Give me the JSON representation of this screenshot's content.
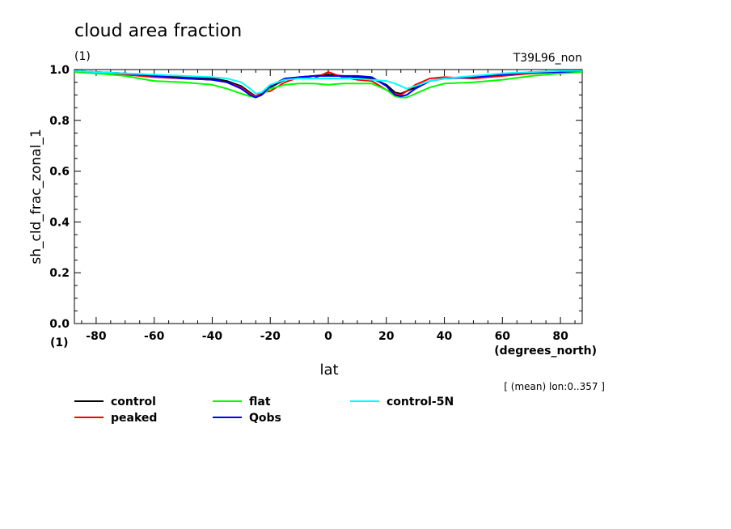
{
  "chart_data": {
    "type": "line",
    "title": "cloud area fraction",
    "units_label": "(1)",
    "experiment": "T39L96_non",
    "xlabel": "lat",
    "xunits": "(degrees_north)",
    "ylabel": "sh_cld_frac_zonal_1",
    "yunits": "(1)",
    "note": "[ (mean) lon:0..357 ]",
    "xlim": [
      -87.5,
      87.5
    ],
    "ylim": [
      0.0,
      1.0
    ],
    "xticks": [
      -80,
      -60,
      -40,
      -20,
      0,
      20,
      40,
      60,
      80
    ],
    "xtick_labels": [
      "-80",
      "-60",
      "-40",
      "-20",
      "0",
      "20",
      "40",
      "60",
      "80"
    ],
    "yticks": [
      0.0,
      0.2,
      0.4,
      0.6,
      0.8,
      1.0
    ],
    "ytick_labels": [
      "0.0",
      "0.2",
      "0.4",
      "0.6",
      "0.8",
      "1.0"
    ],
    "x": [
      -87.5,
      -80,
      -70,
      -60,
      -50,
      -40,
      -35,
      -30,
      -27,
      -25,
      -23,
      -20,
      -15,
      -10,
      -5,
      0,
      5,
      10,
      15,
      20,
      23,
      25,
      27,
      30,
      35,
      40,
      50,
      60,
      70,
      80,
      87.5
    ],
    "series": [
      {
        "name": "control",
        "color": "#000000",
        "values": [
          0.995,
          0.99,
          0.985,
          0.975,
          0.97,
          0.965,
          0.955,
          0.935,
          0.91,
          0.895,
          0.905,
          0.93,
          0.96,
          0.97,
          0.975,
          0.98,
          0.975,
          0.97,
          0.965,
          0.94,
          0.91,
          0.905,
          0.915,
          0.93,
          0.955,
          0.965,
          0.97,
          0.98,
          0.99,
          0.99,
          0.995
        ]
      },
      {
        "name": "peaked",
        "color": "#ff0000",
        "values": [
          0.995,
          0.99,
          0.98,
          0.97,
          0.965,
          0.96,
          0.95,
          0.93,
          0.905,
          0.895,
          0.91,
          0.915,
          0.95,
          0.97,
          0.965,
          0.99,
          0.97,
          0.96,
          0.955,
          0.92,
          0.905,
          0.9,
          0.915,
          0.94,
          0.965,
          0.97,
          0.965,
          0.975,
          0.985,
          0.99,
          0.995
        ]
      },
      {
        "name": "flat",
        "color": "#00ff00",
        "values": [
          0.99,
          0.985,
          0.975,
          0.955,
          0.95,
          0.94,
          0.925,
          0.905,
          0.895,
          0.89,
          0.9,
          0.925,
          0.94,
          0.945,
          0.945,
          0.94,
          0.945,
          0.945,
          0.945,
          0.92,
          0.895,
          0.89,
          0.89,
          0.905,
          0.93,
          0.945,
          0.95,
          0.96,
          0.975,
          0.985,
          0.99
        ]
      },
      {
        "name": "Qobs",
        "color": "#0000ff",
        "values": [
          0.995,
          0.99,
          0.985,
          0.975,
          0.965,
          0.96,
          0.95,
          0.925,
          0.9,
          0.89,
          0.9,
          0.935,
          0.965,
          0.97,
          0.975,
          0.975,
          0.975,
          0.975,
          0.97,
          0.935,
          0.9,
          0.895,
          0.9,
          0.925,
          0.955,
          0.965,
          0.97,
          0.98,
          0.99,
          0.99,
          0.995
        ]
      },
      {
        "name": "control-5N",
        "color": "#00ffff",
        "values": [
          0.995,
          0.99,
          0.985,
          0.98,
          0.975,
          0.97,
          0.965,
          0.95,
          0.925,
          0.905,
          0.91,
          0.94,
          0.96,
          0.965,
          0.965,
          0.965,
          0.965,
          0.965,
          0.96,
          0.955,
          0.945,
          0.935,
          0.925,
          0.935,
          0.955,
          0.965,
          0.975,
          0.985,
          0.99,
          0.995,
          0.995
        ]
      }
    ]
  }
}
